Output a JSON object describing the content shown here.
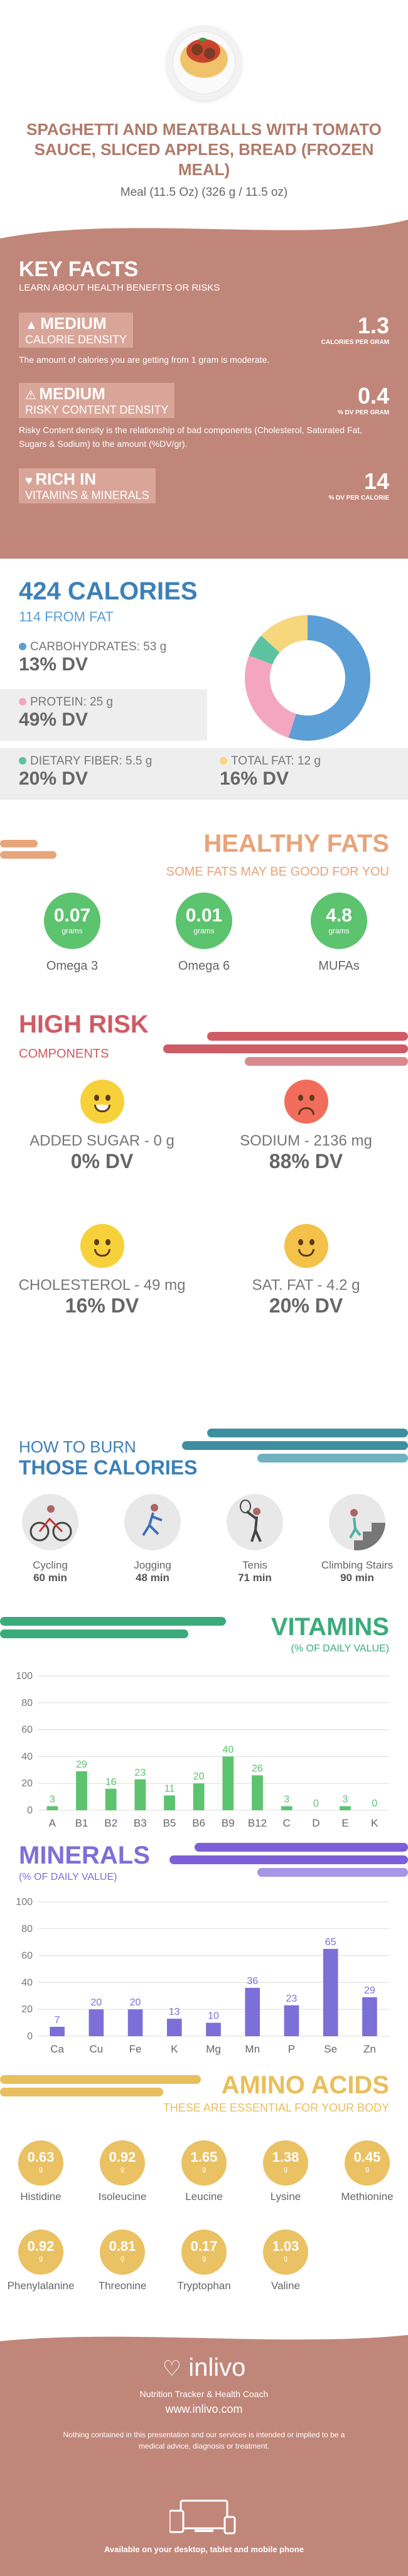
{
  "header": {
    "title": "SPAGHETTI AND MEATBALLS WITH TOMATO SAUCE, SLICED APPLES, BREAD (FROZEN MEAL)",
    "serving": "Meal (11.5 Oz) (326 g / 11.5 oz)"
  },
  "key_facts": {
    "title": "KEY FACTS",
    "subtitle": "LEARN ABOUT HEALTH BENEFITS OR RISKS",
    "calorie_density": {
      "level": "MEDIUM",
      "label": "CALORIE DENSITY",
      "value": "1.3",
      "unit": "CALORIES PER GRAM",
      "desc": "The amount of calories you are getting from 1 gram is moderate."
    },
    "risky_density": {
      "level": "MEDIUM",
      "label": "RISKY CONTENT DENSITY",
      "value": "0.4",
      "unit": "% DV PER GRAM",
      "desc": "Risky Content density is the relationship of bad components (Cholesterol, Saturated Fat, Sugars & Sodium) to the amount (%DV/gr)."
    },
    "rich": {
      "level": "RICH IN",
      "label": "VITAMINS & MINERALS",
      "value": "14",
      "unit": "% DV PER CALORIE"
    }
  },
  "calories": {
    "title": "424 CALORIES",
    "from_fat": "114 FROM FAT",
    "carbs": {
      "label": "CARBOHYDRATES: 53 g",
      "dv": "13% DV",
      "color": "#5b9fd6"
    },
    "protein": {
      "label": "PROTEIN: 25 g",
      "dv": "49% DV",
      "color": "#f4a6c1"
    },
    "fiber": {
      "label": "DIETARY FIBER: 5.5 g",
      "dv": "20% DV",
      "color": "#5cc3a0"
    },
    "fat": {
      "label": "TOTAL FAT: 12 g",
      "dv": "16% DV",
      "color": "#f6d77d"
    }
  },
  "healthy_fats": {
    "title": "HEALTHY FATS",
    "subtitle": "SOME FATS MAY BE GOOD FOR YOU",
    "items": [
      {
        "value": "0.07",
        "unit": "grams",
        "name": "Omega 3"
      },
      {
        "value": "0.01",
        "unit": "grams",
        "name": "Omega 6"
      },
      {
        "value": "4.8",
        "unit": "grams",
        "name": "MUFAs"
      }
    ]
  },
  "high_risk": {
    "title": "HIGH RISK",
    "subtitle": "COMPONENTS",
    "items": [
      {
        "label": "ADDED SUGAR - 0 g",
        "dv": "0% DV",
        "face": "happy",
        "color": "#f7d13a"
      },
      {
        "label": "SODIUM - 2136 mg",
        "dv": "88% DV",
        "face": "sad",
        "color": "#f26c5b"
      },
      {
        "label": "CHOLESTEROL - 49 mg",
        "dv": "16% DV",
        "face": "smile",
        "color": "#f7d13a"
      },
      {
        "label": "SAT. FAT - 4.2 g",
        "dv": "20% DV",
        "face": "smile",
        "color": "#f4c24a"
      }
    ]
  },
  "burn": {
    "title1": "HOW TO BURN",
    "title2": "THOSE CALORIES",
    "items": [
      {
        "name": "Cycling",
        "minutes": "60 min"
      },
      {
        "name": "Jogging",
        "minutes": "48 min"
      },
      {
        "name": "Tenis",
        "minutes": "71 min"
      },
      {
        "name": "Climbing Stairs",
        "minutes": "90 min"
      }
    ]
  },
  "vitamins": {
    "title": "VITAMINS",
    "subtitle": "(% OF DAILY VALUE)",
    "color": "#5cc36e",
    "chart_data": {
      "type": "bar",
      "categories": [
        "A",
        "B1",
        "B2",
        "B3",
        "B5",
        "B6",
        "B9",
        "B12",
        "C",
        "D",
        "E",
        "K"
      ],
      "values": [
        3,
        29,
        16,
        23,
        11,
        20,
        40,
        26,
        3,
        0,
        3,
        0
      ],
      "ylim": [
        0,
        100
      ],
      "yticks": [
        0,
        20,
        40,
        60,
        80,
        100
      ]
    }
  },
  "minerals": {
    "title": "MINERALS",
    "subtitle": "(% OF DAILY VALUE)",
    "color": "#7d6fd8",
    "chart_data": {
      "type": "bar",
      "categories": [
        "Ca",
        "Cu",
        "Fe",
        "K",
        "Mg",
        "Mn",
        "P",
        "Se",
        "Zn"
      ],
      "values": [
        7,
        20,
        20,
        13,
        10,
        36,
        23,
        65,
        29
      ],
      "ylim": [
        0,
        100
      ],
      "yticks": [
        0,
        20,
        40,
        60,
        80,
        100
      ]
    }
  },
  "amino": {
    "title": "AMINO ACIDS",
    "subtitle": "THESE ARE ESSENTIAL FOR YOUR BODY",
    "items": [
      {
        "value": "0.63",
        "unit": "g",
        "name": "Histidine"
      },
      {
        "value": "0.92",
        "unit": "g",
        "name": "Isoleucine"
      },
      {
        "value": "1.65",
        "unit": "g",
        "name": "Leucine"
      },
      {
        "value": "1.38",
        "unit": "g",
        "name": "Lysine"
      },
      {
        "value": "0.45",
        "unit": "g",
        "name": "Methionine"
      },
      {
        "value": "0.92",
        "unit": "g",
        "name": "Phenylalanine"
      },
      {
        "value": "0.81",
        "unit": "g",
        "name": "Threonine"
      },
      {
        "value": "0.17",
        "unit": "g",
        "name": "Tryptophan"
      },
      {
        "value": "1.03",
        "unit": "g",
        "name": "Valine"
      }
    ]
  },
  "footer": {
    "logo": "inlivo",
    "tagline": "Nutrition Tracker & Health Coach",
    "site": "www.inlivo.com",
    "disclaimer": "Nothing contained in this presentation and our services is intended or implied to be a medical advice, diagnosis or treatment.",
    "available": "Available on your desktop, tablet and mobile phone"
  }
}
